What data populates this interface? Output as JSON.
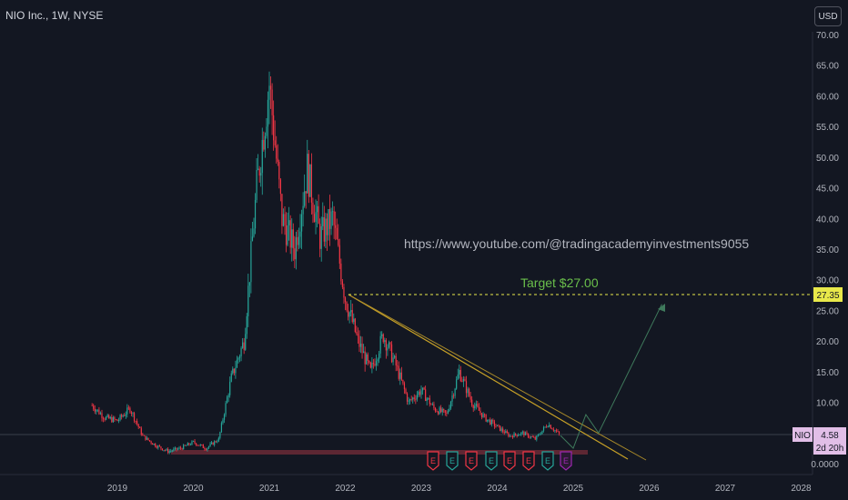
{
  "header": {
    "title": "NIO Inc., 1W, NYSE",
    "currency_button": "USD"
  },
  "annotations": {
    "url_text": "https://www.youtube.com/@tradingacademyinvestments9055",
    "target_text": "Target $27.00"
  },
  "price_tags": {
    "target_level": "27.35",
    "symbol": "NIO",
    "last_price": "4.58",
    "countdown": "2d 20h"
  },
  "earnings_marker_label": "E",
  "colors": {
    "background": "#131722",
    "up": "#26a69a",
    "down": "#f23645",
    "trendline": "#c9a227",
    "target": "#e8e84a",
    "earnings_purple": "#9c27b0"
  },
  "chart_data": {
    "type": "candlestick",
    "title": "NIO Inc., 1W, NYSE",
    "x_ticks": [
      "2019",
      "2020",
      "2021",
      "2022",
      "2023",
      "2024",
      "2025",
      "2026",
      "2027",
      "2028"
    ],
    "y_ticks": [
      "70.00",
      "65.00",
      "60.00",
      "55.00",
      "50.00",
      "45.00",
      "40.00",
      "35.00",
      "30.00",
      "25.00",
      "20.00",
      "15.00",
      "10.00",
      "5.00",
      "0.0000"
    ],
    "ylim": [
      0,
      70
    ],
    "series": [
      {
        "name": "NIO",
        "points": [
          [
            "2018-09",
            9.5
          ],
          [
            "2018-11",
            7.5
          ],
          [
            "2019-01",
            7.0
          ],
          [
            "2019-03",
            9.0
          ],
          [
            "2019-05",
            4.5
          ],
          [
            "2019-07",
            3.0
          ],
          [
            "2019-09",
            2.0
          ],
          [
            "2019-11",
            2.5
          ],
          [
            "2020-01",
            3.5
          ],
          [
            "2020-03",
            2.5
          ],
          [
            "2020-05",
            4.0
          ],
          [
            "2020-07",
            14.0
          ],
          [
            "2020-09",
            20.0
          ],
          [
            "2020-11",
            45.0
          ],
          [
            "2021-01",
            62.0
          ],
          [
            "2021-03",
            40.0
          ],
          [
            "2021-05",
            35.0
          ],
          [
            "2021-07",
            48.0
          ],
          [
            "2021-09",
            37.0
          ],
          [
            "2021-11",
            40.0
          ],
          [
            "2022-01",
            27.0
          ],
          [
            "2022-03",
            20.0
          ],
          [
            "2022-05",
            15.0
          ],
          [
            "2022-07",
            21.0
          ],
          [
            "2022-09",
            16.0
          ],
          [
            "2022-11",
            10.0
          ],
          [
            "2023-01",
            12.0
          ],
          [
            "2023-03",
            9.0
          ],
          [
            "2023-05",
            8.0
          ],
          [
            "2023-07",
            15.0
          ],
          [
            "2023-09",
            10.0
          ],
          [
            "2023-11",
            7.5
          ],
          [
            "2024-01",
            6.0
          ],
          [
            "2024-03",
            4.5
          ],
          [
            "2024-05",
            5.0
          ],
          [
            "2024-07",
            4.0
          ],
          [
            "2024-09",
            6.5
          ],
          [
            "2024-11",
            4.58
          ]
        ]
      }
    ],
    "target_price": 27.0,
    "target_label_price": 27.35,
    "last_price": 4.58,
    "projection_path": [
      [
        "2024-11",
        4.58
      ],
      [
        "2025-01",
        2.5
      ],
      [
        "2025-03",
        8.0
      ],
      [
        "2025-05",
        5.0
      ],
      [
        "2026-03",
        26.0
      ]
    ],
    "grid": false
  }
}
